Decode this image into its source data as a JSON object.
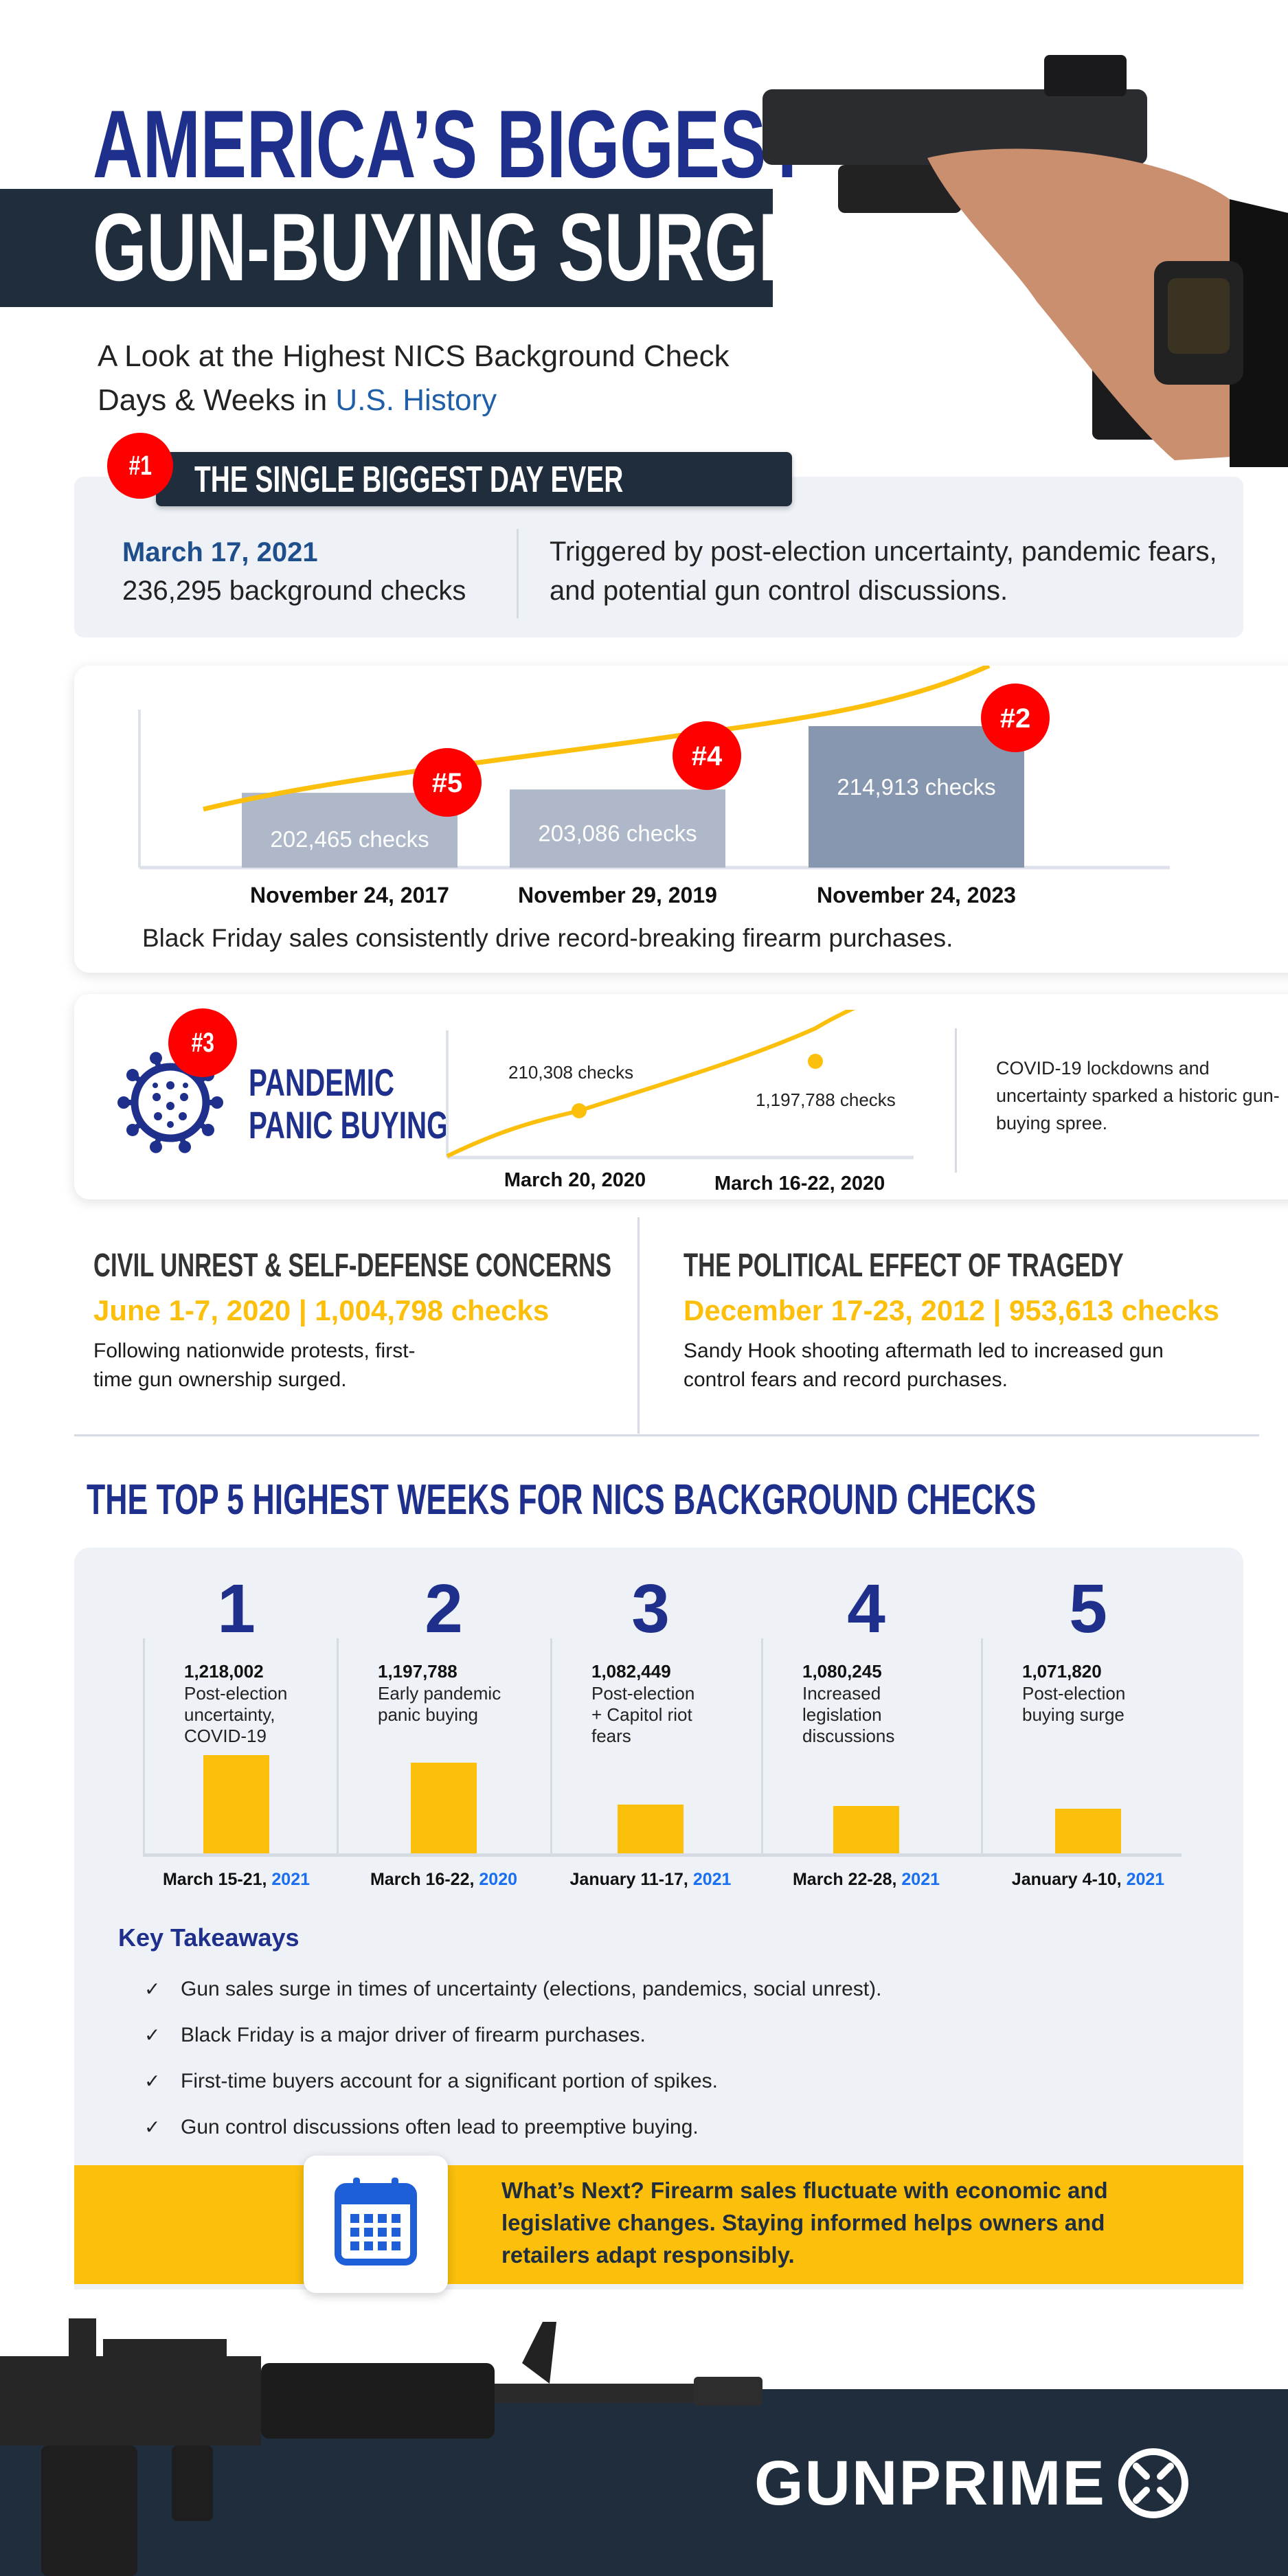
{
  "header": {
    "title_line1": "AMERICA’S BIGGEST",
    "title_line2": "GUN-BUYING SURGES",
    "subtitle_line1": "A Look at the Highest NICS Background Check",
    "subtitle_line2_prefix": "Days & Weeks in ",
    "subtitle_line2_highlight": "U.S. History"
  },
  "single_day": {
    "badge": "#1",
    "heading": "THE SINGLE BIGGEST DAY EVER",
    "date": "March 17, 2021",
    "checks": "236,295 background checks",
    "description": "Triggered by post-election uncertainty, pandemic fears, and potential gun control discussions."
  },
  "black_friday": {
    "caption": "Black Friday sales consistently drive record-breaking firearm purchases.",
    "chart_data": {
      "type": "bar",
      "categories": [
        "November 24, 2017",
        "November 29, 2019",
        "November 24, 2023"
      ],
      "values": [
        202465,
        203086,
        214913
      ],
      "data_labels": [
        "202,465  checks",
        "203,086 checks",
        "214,913 checks"
      ],
      "rank_badges": [
        "#5",
        "#4",
        "#2"
      ],
      "ylim": [
        188500,
        218000
      ],
      "bar_colors": [
        "#aeb8c9",
        "#aeb8c9",
        "#8797b0"
      ],
      "trend_color": "#fbbf0c"
    }
  },
  "pandemic": {
    "badge": "#3",
    "title_line1": "PANDEMIC",
    "title_line2": "PANIC BUYING",
    "description": "COVID-19 lockdowns and uncertainty sparked a historic gun-buying spree.",
    "chart_data": {
      "type": "line",
      "points": [
        {
          "label": "March 20, 2020",
          "value_label": "210,308 checks"
        },
        {
          "label": "March 16-22, 2020",
          "value_label": "1,197,788 checks"
        }
      ],
      "line_color": "#fbbf0c"
    }
  },
  "civil_unrest": {
    "heading": "CIVIL UNREST & SELF-DEFENSE CONCERNS",
    "stat": "June 1-7, 2020 | 1,004,798 checks",
    "text_line1": "Following nationwide protests, first-",
    "text_line2": "time gun ownership surged."
  },
  "political": {
    "heading": "THE POLITICAL EFFECT OF TRAGEDY",
    "stat": "December 17-23, 2012 | 953,613 checks",
    "text_line1": "Sandy Hook shooting aftermath led to increased gun",
    "text_line2": "control fears and record purchases."
  },
  "top5": {
    "heading": "THE TOP 5 HIGHEST WEEKS FOR NICS BACKGROUND CHECKS",
    "chart_data": {
      "type": "bar",
      "ylim": [
        950000,
        1250000
      ],
      "bar_color": "#fbbf0c",
      "items": [
        {
          "rank": "1",
          "value": 1218002,
          "value_label": "1,218,002",
          "desc": [
            "Post-election",
            "uncertainty,",
            "COVID-19"
          ],
          "date": "March 15-21, ",
          "year": "2021"
        },
        {
          "rank": "2",
          "value": 1197788,
          "value_label": "1,197,788",
          "desc": [
            "Early pandemic",
            "panic buying"
          ],
          "date": "March 16-22, ",
          "year": "2020"
        },
        {
          "rank": "3",
          "value": 1082449,
          "value_label": "1,082,449",
          "desc": [
            "Post-election",
            "+ Capitol riot",
            "fears"
          ],
          "date": "January 11-17, ",
          "year": "2021"
        },
        {
          "rank": "4",
          "value": 1080245,
          "value_label": "1,080,245",
          "desc": [
            "Increased",
            "legislation",
            "discussions"
          ],
          "date": "March 22-28, ",
          "year": "2021"
        },
        {
          "rank": "5",
          "value": 1071820,
          "value_label": "1,071,820",
          "desc": [
            "Post-election",
            "buying surge"
          ],
          "date": "January 4-10, ",
          "year": "2021"
        }
      ]
    }
  },
  "takeaways": {
    "heading": "Key Takeaways",
    "items": [
      "Gun sales surge in times of uncertainty (elections, pandemics, social unrest).",
      "Black Friday is a major driver of firearm purchases.",
      "First-time buyers account for a significant portion of spikes.",
      "Gun control discussions often lead to preemptive buying."
    ]
  },
  "whats_next": {
    "text_line1": "What’s Next? Firearm sales fluctuate with economic and",
    "text_line2": "legislative changes. Staying informed helps owners and",
    "text_line3": "retailers adapt responsibly.",
    "icon": "calendar-icon"
  },
  "footer": {
    "logo": "GUNPRIME"
  },
  "colors": {
    "navy": "#1e2f8c",
    "dark_band": "#1f2d3d",
    "gold": "#fbbf0c",
    "red": "#ff0000",
    "blue_accent": "#1a6ff0",
    "panel": "#eef1f6"
  }
}
